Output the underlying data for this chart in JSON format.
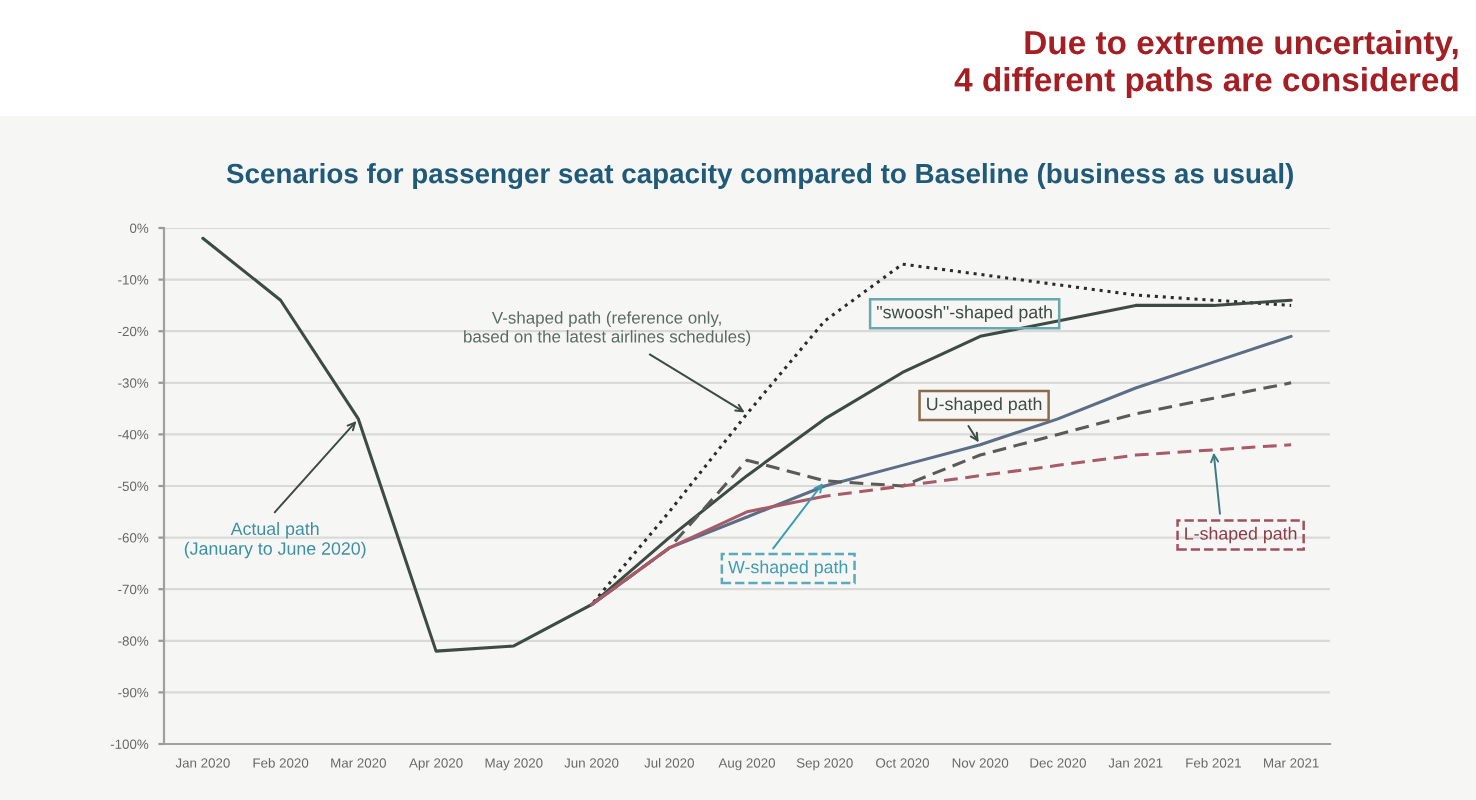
{
  "chart_data": {
    "type": "line",
    "title": "Scenarios for passenger seat capacity compared to Baseline (business as usual)",
    "categories": [
      "Jan 2020",
      "Feb 2020",
      "Mar 2020",
      "Apr 2020",
      "May 2020",
      "Jun 2020",
      "Jul 2020",
      "Aug 2020",
      "Sep 2020",
      "Oct 2020",
      "Nov 2020",
      "Dec 2020",
      "Jan 2021",
      "Feb 2021",
      "Mar 2021"
    ],
    "ylim": [
      -100,
      0
    ],
    "yticks": [
      {
        "value": 0,
        "label": "0%"
      },
      {
        "value": -10,
        "label": "-10%"
      },
      {
        "value": -20,
        "label": "-20%"
      },
      {
        "value": -30,
        "label": "-30%"
      },
      {
        "value": -40,
        "label": "-40%"
      },
      {
        "value": -50,
        "label": "-50%"
      },
      {
        "value": -60,
        "label": "-60%"
      },
      {
        "value": -70,
        "label": "-70%"
      },
      {
        "value": -80,
        "label": "-80%"
      },
      {
        "value": -90,
        "label": "-90%"
      },
      {
        "value": -100,
        "label": "-100%"
      }
    ],
    "grid": "y",
    "series": [
      {
        "color": "#3d4a45",
        "line_style": "solid",
        "values": [
          -2,
          -14,
          -37,
          -82,
          -81,
          -73,
          null,
          null,
          null,
          null,
          null,
          null,
          null,
          null,
          null
        ]
      },
      {
        "color": "#2b2b2b",
        "line_style": "dotted",
        "values": [
          null,
          null,
          null,
          null,
          null,
          -73,
          -55,
          -36,
          -18,
          -7,
          -9,
          -11,
          -13,
          -14,
          -15
        ]
      },
      {
        "color": "#3e4a44",
        "line_style": "solid",
        "values": [
          null,
          null,
          null,
          null,
          null,
          -73,
          -60,
          -48,
          -37,
          -28,
          -21,
          -18,
          -15,
          -15,
          -14
        ]
      },
      {
        "color": "#5c6e86",
        "line_style": "solid",
        "values": [
          null,
          null,
          null,
          null,
          null,
          -73,
          -62,
          -56,
          -50,
          -46,
          -42,
          -37,
          -31,
          -26,
          -21
        ]
      },
      {
        "color": "#5a5a5a",
        "line_style": "dashed",
        "values": [
          null,
          null,
          null,
          null,
          null,
          -73,
          -62,
          -45,
          -49,
          -50,
          -44,
          -40,
          -36,
          -33,
          -30
        ]
      },
      {
        "color": "#a85a68",
        "line_style": "solid",
        "values": [
          null,
          null,
          null,
          null,
          null,
          -73,
          -62,
          -55,
          -52,
          null,
          null,
          null,
          null,
          null,
          null
        ]
      },
      {
        "color": "#a85a68",
        "line_style": "dashed",
        "values": [
          null,
          null,
          null,
          null,
          null,
          null,
          null,
          null,
          -52,
          -50,
          -48,
          -46,
          -44,
          -43,
          -42
        ]
      }
    ],
    "annotations": [
      "Due to extreme uncertainty,\n4 different paths are considered",
      {
        "text": "Actual path\n(January to June 2020)",
        "x": "Mar 2020",
        "y": -37
      },
      {
        "text": "V-shaped path (reference only,\nbased on the latest airlines schedules)",
        "x": "Aug 2020",
        "y": -36
      },
      "\"swoosh\"-shaped path",
      {
        "text": "U-shaped path",
        "x": "Nov 2020",
        "y": -42
      },
      {
        "text": "W-shaped path",
        "x": "Sep 2020",
        "y": -49
      },
      {
        "text": "L-shaped path",
        "x": "Feb 2021",
        "y": -43
      }
    ]
  }
}
